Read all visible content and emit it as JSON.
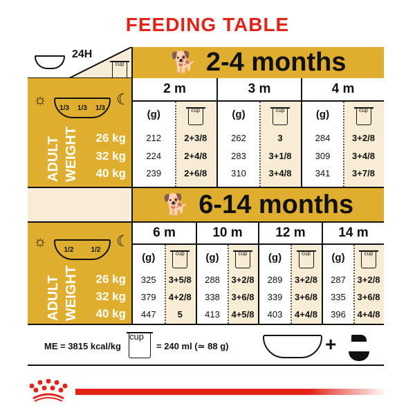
{
  "title": "FEEDING TABLE",
  "header": {
    "duration": "24H",
    "cup_label": "cup",
    "icons": [
      "food-bowl-icon",
      "cup-icon"
    ]
  },
  "colors": {
    "title": "#e2231a",
    "gold": "#e0ae2e",
    "cream": "#f8ecd4",
    "brand_red": "#e2231a"
  },
  "sections": [
    {
      "label": "2-4 months",
      "icon": "puppy-icon",
      "portions": [
        "1/3",
        "1/3",
        "1/3"
      ],
      "weight_label": [
        "ADULT",
        "WEIGHT"
      ],
      "weights": [
        "26 kg",
        "32 kg",
        "40 kg"
      ],
      "unit_g": "(g)",
      "unit_cup": "cup",
      "columns": [
        {
          "month": "2 m",
          "grams": [
            "212",
            "224",
            "239"
          ],
          "cups": [
            "2+3/8",
            "2+4/8",
            "2+6/8"
          ]
        },
        {
          "month": "3 m",
          "grams": [
            "262",
            "283",
            "310"
          ],
          "cups": [
            "3",
            "3+1/8",
            "3+4/8"
          ]
        },
        {
          "month": "4 m",
          "grams": [
            "284",
            "309",
            "341"
          ],
          "cups": [
            "3+2/8",
            "3+4/8",
            "3+7/8"
          ]
        }
      ]
    },
    {
      "label": "6-14 months",
      "icon": "young-dog-icon",
      "portions": [
        "1/2",
        "1/2"
      ],
      "weight_label": [
        "ADULT",
        "WEIGHT"
      ],
      "weights": [
        "26 kg",
        "32 kg",
        "40 kg"
      ],
      "unit_g": "(g)",
      "unit_cup": "cup",
      "columns": [
        {
          "month": "6 m",
          "grams": [
            "325",
            "379",
            "447"
          ],
          "cups": [
            "3+5/8",
            "4+2/8",
            "5"
          ]
        },
        {
          "month": "10 m",
          "grams": [
            "288",
            "338",
            "413"
          ],
          "cups": [
            "3+2/8",
            "3+6/8",
            "4+5/8"
          ]
        },
        {
          "month": "12 m",
          "grams": [
            "289",
            "339",
            "403"
          ],
          "cups": [
            "3+2/8",
            "3+6/8",
            "4+4/8"
          ]
        },
        {
          "month": "14 m",
          "grams": [
            "287",
            "335",
            "396"
          ],
          "cups": [
            "3+2/8",
            "3+6/8",
            "4+4/8"
          ]
        }
      ]
    }
  ],
  "footer": {
    "energy": "ME = 3815 kcal/kg",
    "cup_label": "cup",
    "cup_equivalence": "= 240 ml (≃ 88 g)",
    "plus": "+",
    "icons": [
      "food-bowl-icon",
      "water-tap-icon"
    ]
  },
  "brand": {
    "logo": "Royal Canin crown"
  }
}
